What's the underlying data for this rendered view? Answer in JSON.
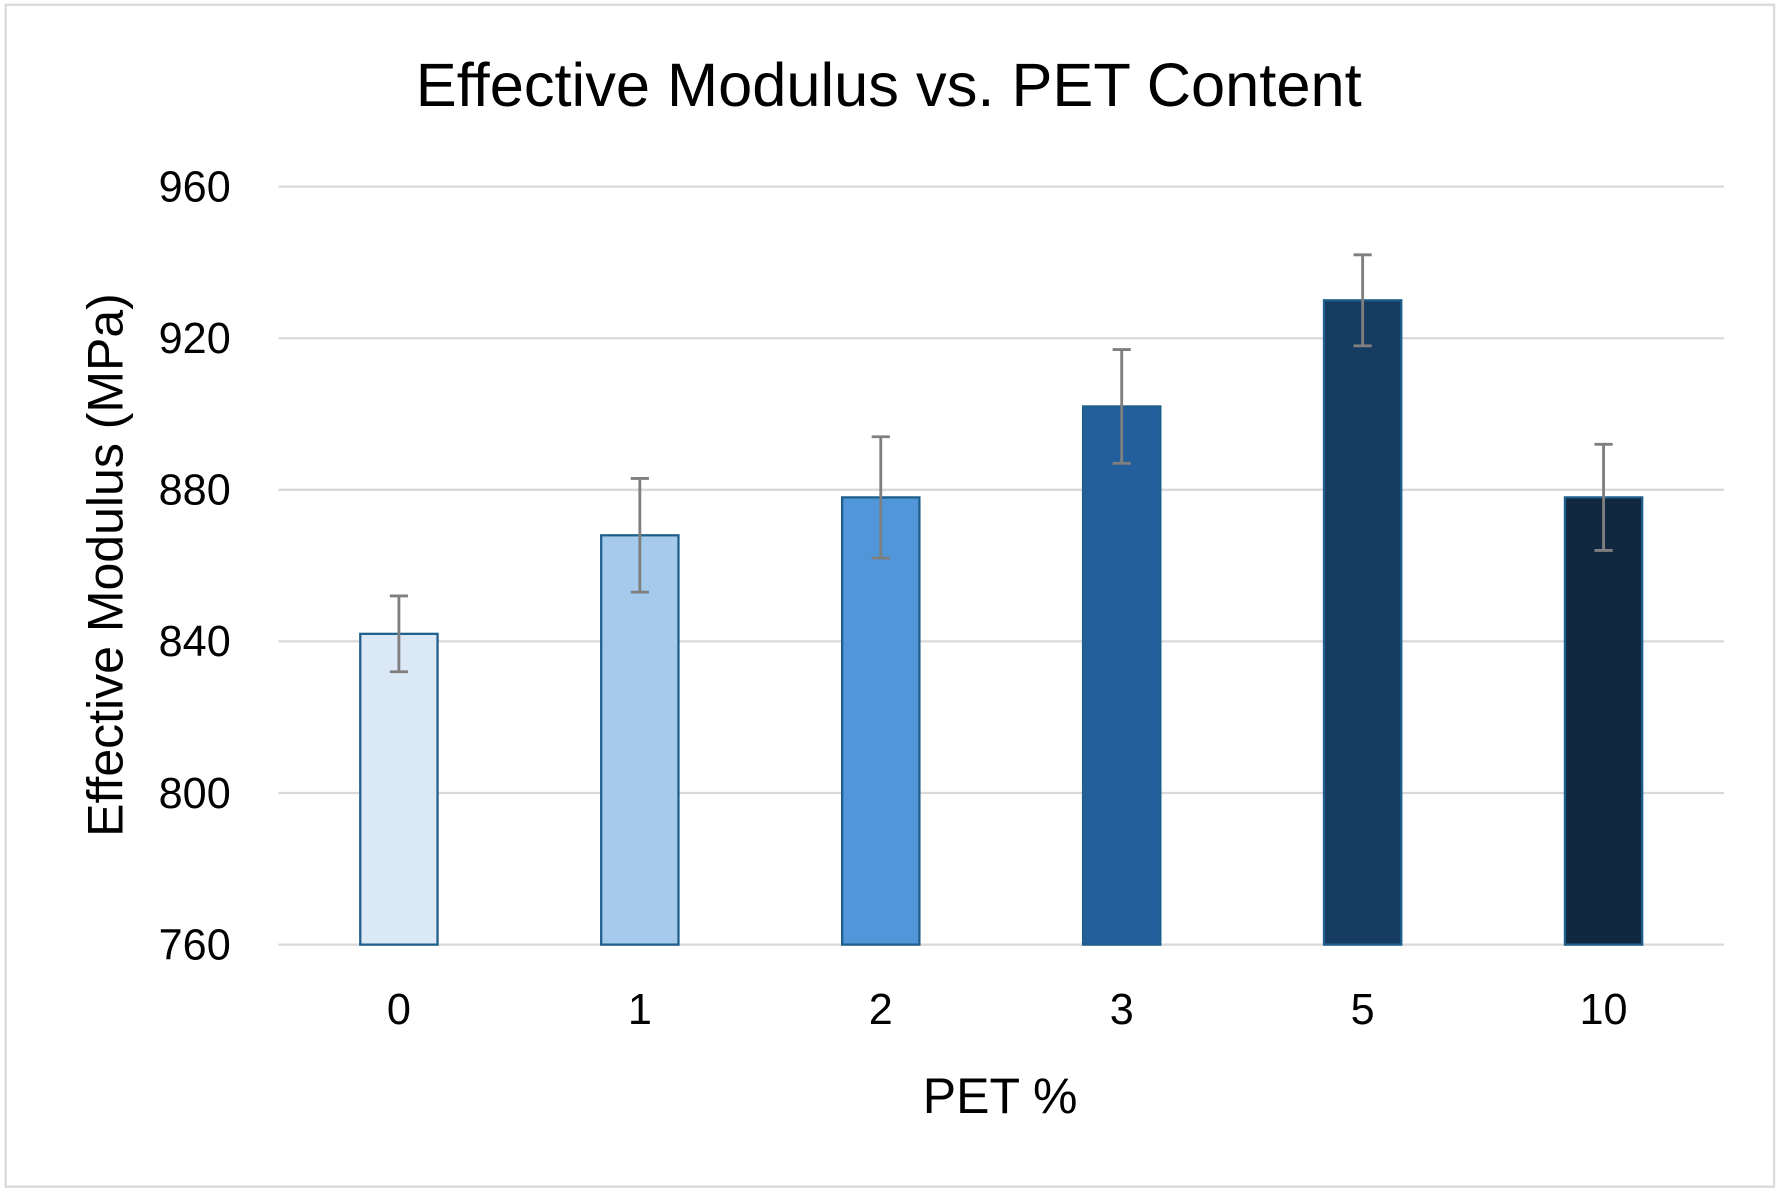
{
  "chart_data": {
    "type": "bar",
    "title": "Effective Modulus vs. PET Content",
    "xlabel": "PET %",
    "ylabel": "Effective Modulus (MPa)",
    "categories": [
      "0",
      "1",
      "2",
      "3",
      "5",
      "10"
    ],
    "values": [
      842,
      868,
      878,
      902,
      930,
      878
    ],
    "error": [
      10,
      15,
      16,
      15,
      12,
      14
    ],
    "ylim": [
      760,
      960
    ],
    "yticks": [
      "760",
      "800",
      "840",
      "880",
      "920",
      "960"
    ],
    "grid": true,
    "legend": "none",
    "bar_colors": [
      "#dbe8f6",
      "#a5caec",
      "#5096d9",
      "#225f9c",
      "#173c62",
      "#112940"
    ],
    "bar_edge_color": "#1f5f8b",
    "error_bar_color": "#7f7f7f",
    "grid_color": "#d9d9d9"
  }
}
